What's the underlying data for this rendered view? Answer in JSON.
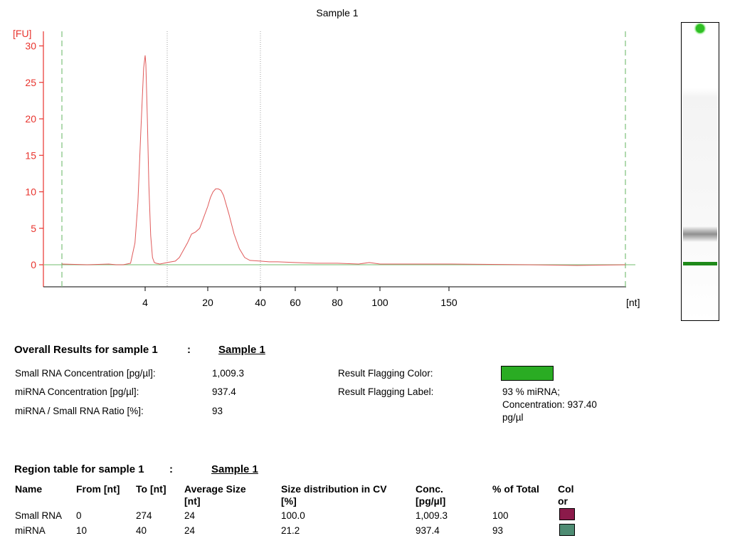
{
  "chart_data": {
    "type": "line",
    "title": "Sample 1",
    "ylabel": "[FU]",
    "xlabel": "[nt]",
    "ylim": [
      -3,
      31
    ],
    "y_ticks": [
      0,
      5,
      10,
      15,
      20,
      25,
      30
    ],
    "x_ticks": [
      "4",
      "20",
      "40",
      "60",
      "80",
      "100",
      "150"
    ],
    "grid": false,
    "series": [
      {
        "points_nt_fu": [
          [
            -15,
            0.1
          ],
          [
            -8,
            0.0
          ],
          [
            -2,
            0.1
          ],
          [
            0,
            0.0
          ],
          [
            1,
            0.0
          ],
          [
            2,
            0.2
          ],
          [
            2.6,
            3.0
          ],
          [
            3.0,
            8.5
          ],
          [
            3.4,
            18.0
          ],
          [
            3.8,
            27.0
          ],
          [
            4.0,
            28.7
          ],
          [
            4.2,
            27.5
          ],
          [
            4.6,
            20.0
          ],
          [
            5.0,
            11.0
          ],
          [
            5.5,
            4.0
          ],
          [
            6.0,
            1.0
          ],
          [
            6.5,
            0.3
          ],
          [
            7.0,
            0.2
          ],
          [
            8,
            0.1
          ],
          [
            10,
            0.3
          ],
          [
            12,
            0.5
          ],
          [
            13,
            1.0
          ],
          [
            14,
            2.0
          ],
          [
            15,
            3.0
          ],
          [
            16,
            4.2
          ],
          [
            17,
            4.5
          ],
          [
            18,
            5.0
          ],
          [
            19,
            6.5
          ],
          [
            20,
            8.0
          ],
          [
            21,
            9.2
          ],
          [
            22,
            10.0
          ],
          [
            23,
            10.4
          ],
          [
            24,
            10.4
          ],
          [
            25,
            10.2
          ],
          [
            26,
            9.5
          ],
          [
            28,
            7.0
          ],
          [
            30,
            4.2
          ],
          [
            32,
            2.2
          ],
          [
            34,
            1.0
          ],
          [
            36,
            0.6
          ],
          [
            40,
            0.5
          ],
          [
            45,
            0.4
          ],
          [
            50,
            0.4
          ],
          [
            60,
            0.3
          ],
          [
            70,
            0.2
          ],
          [
            80,
            0.2
          ],
          [
            90,
            0.1
          ],
          [
            95,
            0.3
          ],
          [
            100,
            0.1
          ],
          [
            120,
            0.1
          ],
          [
            150,
            0.1
          ],
          [
            200,
            0.0
          ],
          [
            230,
            -0.1
          ],
          [
            260,
            0.0
          ]
        ]
      }
    ],
    "markers_nt": {
      "lower": -15,
      "upper": 260
    },
    "region_bounds_nt": [
      10,
      40
    ]
  },
  "colors": {
    "axis": "#e8342e",
    "trace": "#e05a5a",
    "baseline": "#8dc98a",
    "marker": "#7dc07a",
    "region": "#888888",
    "flag": "#2aac23"
  },
  "overall": {
    "heading": "Overall Results for sample 1",
    "colon": ":",
    "sample_link": "Sample 1",
    "rows": [
      {
        "label": "Small RNA Concentration [pg/µl]:",
        "value": "1,009.3"
      },
      {
        "label": "miRNA Concentration [pg/µl]:",
        "value": "937.4"
      },
      {
        "label": "miRNA / Small RNA Ratio [%]:",
        "value": "93"
      }
    ],
    "flag_color_label": "Result Flagging Color:",
    "flag_label_label": "Result Flagging Label:",
    "flag_label_lines": [
      "93 % miRNA;",
      "Concentration: 937.40",
      "pg/µl"
    ]
  },
  "region_table": {
    "heading": "Region table for sample 1",
    "colon": ":",
    "sample_link": "Sample 1",
    "headers": {
      "name": "Name",
      "from": "From [nt]",
      "to": "To [nt]",
      "avg1": "Average Size",
      "avg2": "[nt]",
      "cv1": "Size distribution in CV",
      "cv2": "[%]",
      "conc1": "Conc.",
      "conc2": "[pg/µl]",
      "pct": "% of Total",
      "col1": "Col",
      "col2": "or"
    },
    "rows": [
      {
        "name": "Small RNA",
        "from": "0",
        "to": "274",
        "avg": "24",
        "cv": "100.0",
        "conc": "1,009.3",
        "pct": "100",
        "color": "#8b1a4a"
      },
      {
        "name": "miRNA",
        "from": "10",
        "to": "40",
        "avg": "24",
        "cv": "21.2",
        "conc": "937.4",
        "pct": "93",
        "color": "#4e8c73"
      }
    ]
  }
}
